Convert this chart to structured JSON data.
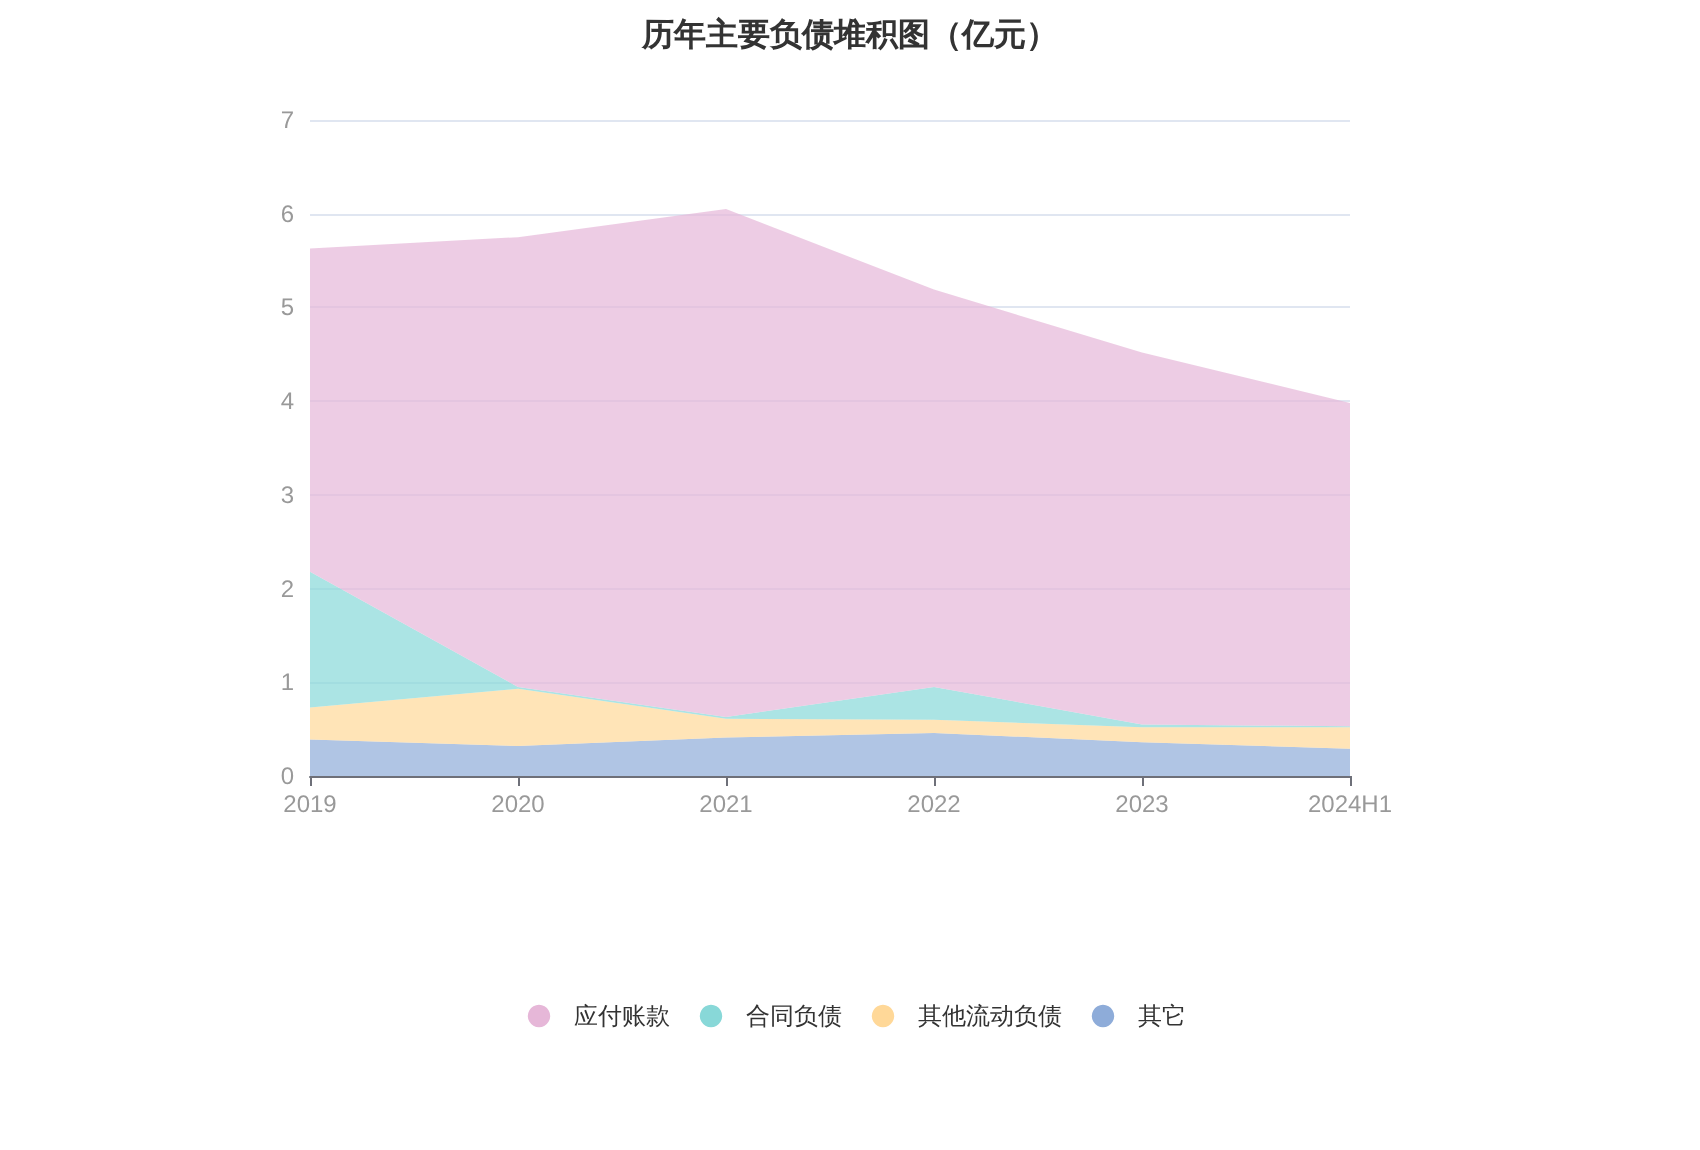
{
  "chart_data": {
    "type": "area",
    "title": "历年主要负债堆积图（亿元）",
    "categories": [
      "2019",
      "2020",
      "2021",
      "2022",
      "2023",
      "2024H1"
    ],
    "stacked": true,
    "series": [
      {
        "name": "其它",
        "color": "#8eacd9",
        "values": [
          0.39,
          0.32,
          0.41,
          0.46,
          0.36,
          0.29
        ]
      },
      {
        "name": "其他流动负债",
        "color": "#ffd898",
        "values": [
          0.34,
          0.61,
          0.2,
          0.14,
          0.16,
          0.23
        ]
      },
      {
        "name": "合同负债",
        "color": "#88d8d8",
        "values": [
          1.45,
          0.02,
          0.02,
          0.35,
          0.03,
          0.01
        ]
      },
      {
        "name": "应付账款",
        "color": "#e6b7d8",
        "values": [
          3.45,
          4.8,
          5.42,
          4.24,
          3.97,
          3.45
        ]
      }
    ],
    "ylim": [
      0,
      7
    ],
    "yticks": [
      0,
      1,
      2,
      3,
      4,
      5,
      6,
      7
    ],
    "grid": "y",
    "legend": "bottom",
    "marker": "none"
  }
}
